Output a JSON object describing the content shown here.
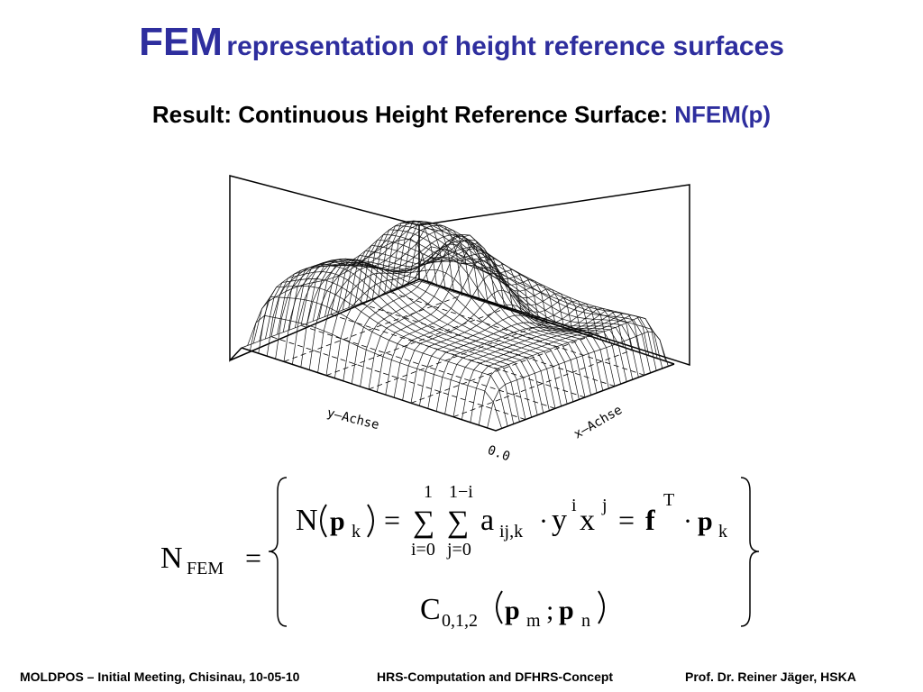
{
  "title": {
    "bold": "FEM",
    "rest": "representation of height reference surfaces"
  },
  "subtitle": {
    "text": "Result: Continuous Height Reference Surface:",
    "highlight": "NFEM(p)"
  },
  "figure": {
    "y_axis_label": "y–Achse",
    "x_axis_label": "x–Achse",
    "origin_label": "0.0"
  },
  "formula": {
    "lhs": "N",
    "lhs_sub": "FEM",
    "equals": "=",
    "case1": {
      "n": "N",
      "p": "p",
      "k": "k",
      "eq1": "=",
      "sum1": "∑",
      "sum1_upper": "1",
      "sum1_lower": "i=0",
      "sum2": "∑",
      "sum2_upper": "1−i",
      "sum2_lower": "j=0",
      "a": "a",
      "a_sub": "ij,k",
      "dot1": "·",
      "y": "y",
      "y_exp": "i",
      "x": "x",
      "x_exp": "j",
      "eq2": "=",
      "f": "f",
      "f_exp": "T",
      "dot2": "·",
      "p2": "p",
      "p2_sub": "k"
    },
    "case2": {
      "c": "C",
      "c_sub": "0,1,2",
      "pm": "p",
      "m": "m",
      "semi": ";",
      "pn": "p",
      "n": "n"
    }
  },
  "footer": {
    "meeting": "MOLDPOS – Initial Meeting, Chisinau, 10-05-10",
    "topic": "HRS-Computation and DFHRS-Concept",
    "author": "Prof. Dr. Reiner Jäger, HSKA"
  }
}
